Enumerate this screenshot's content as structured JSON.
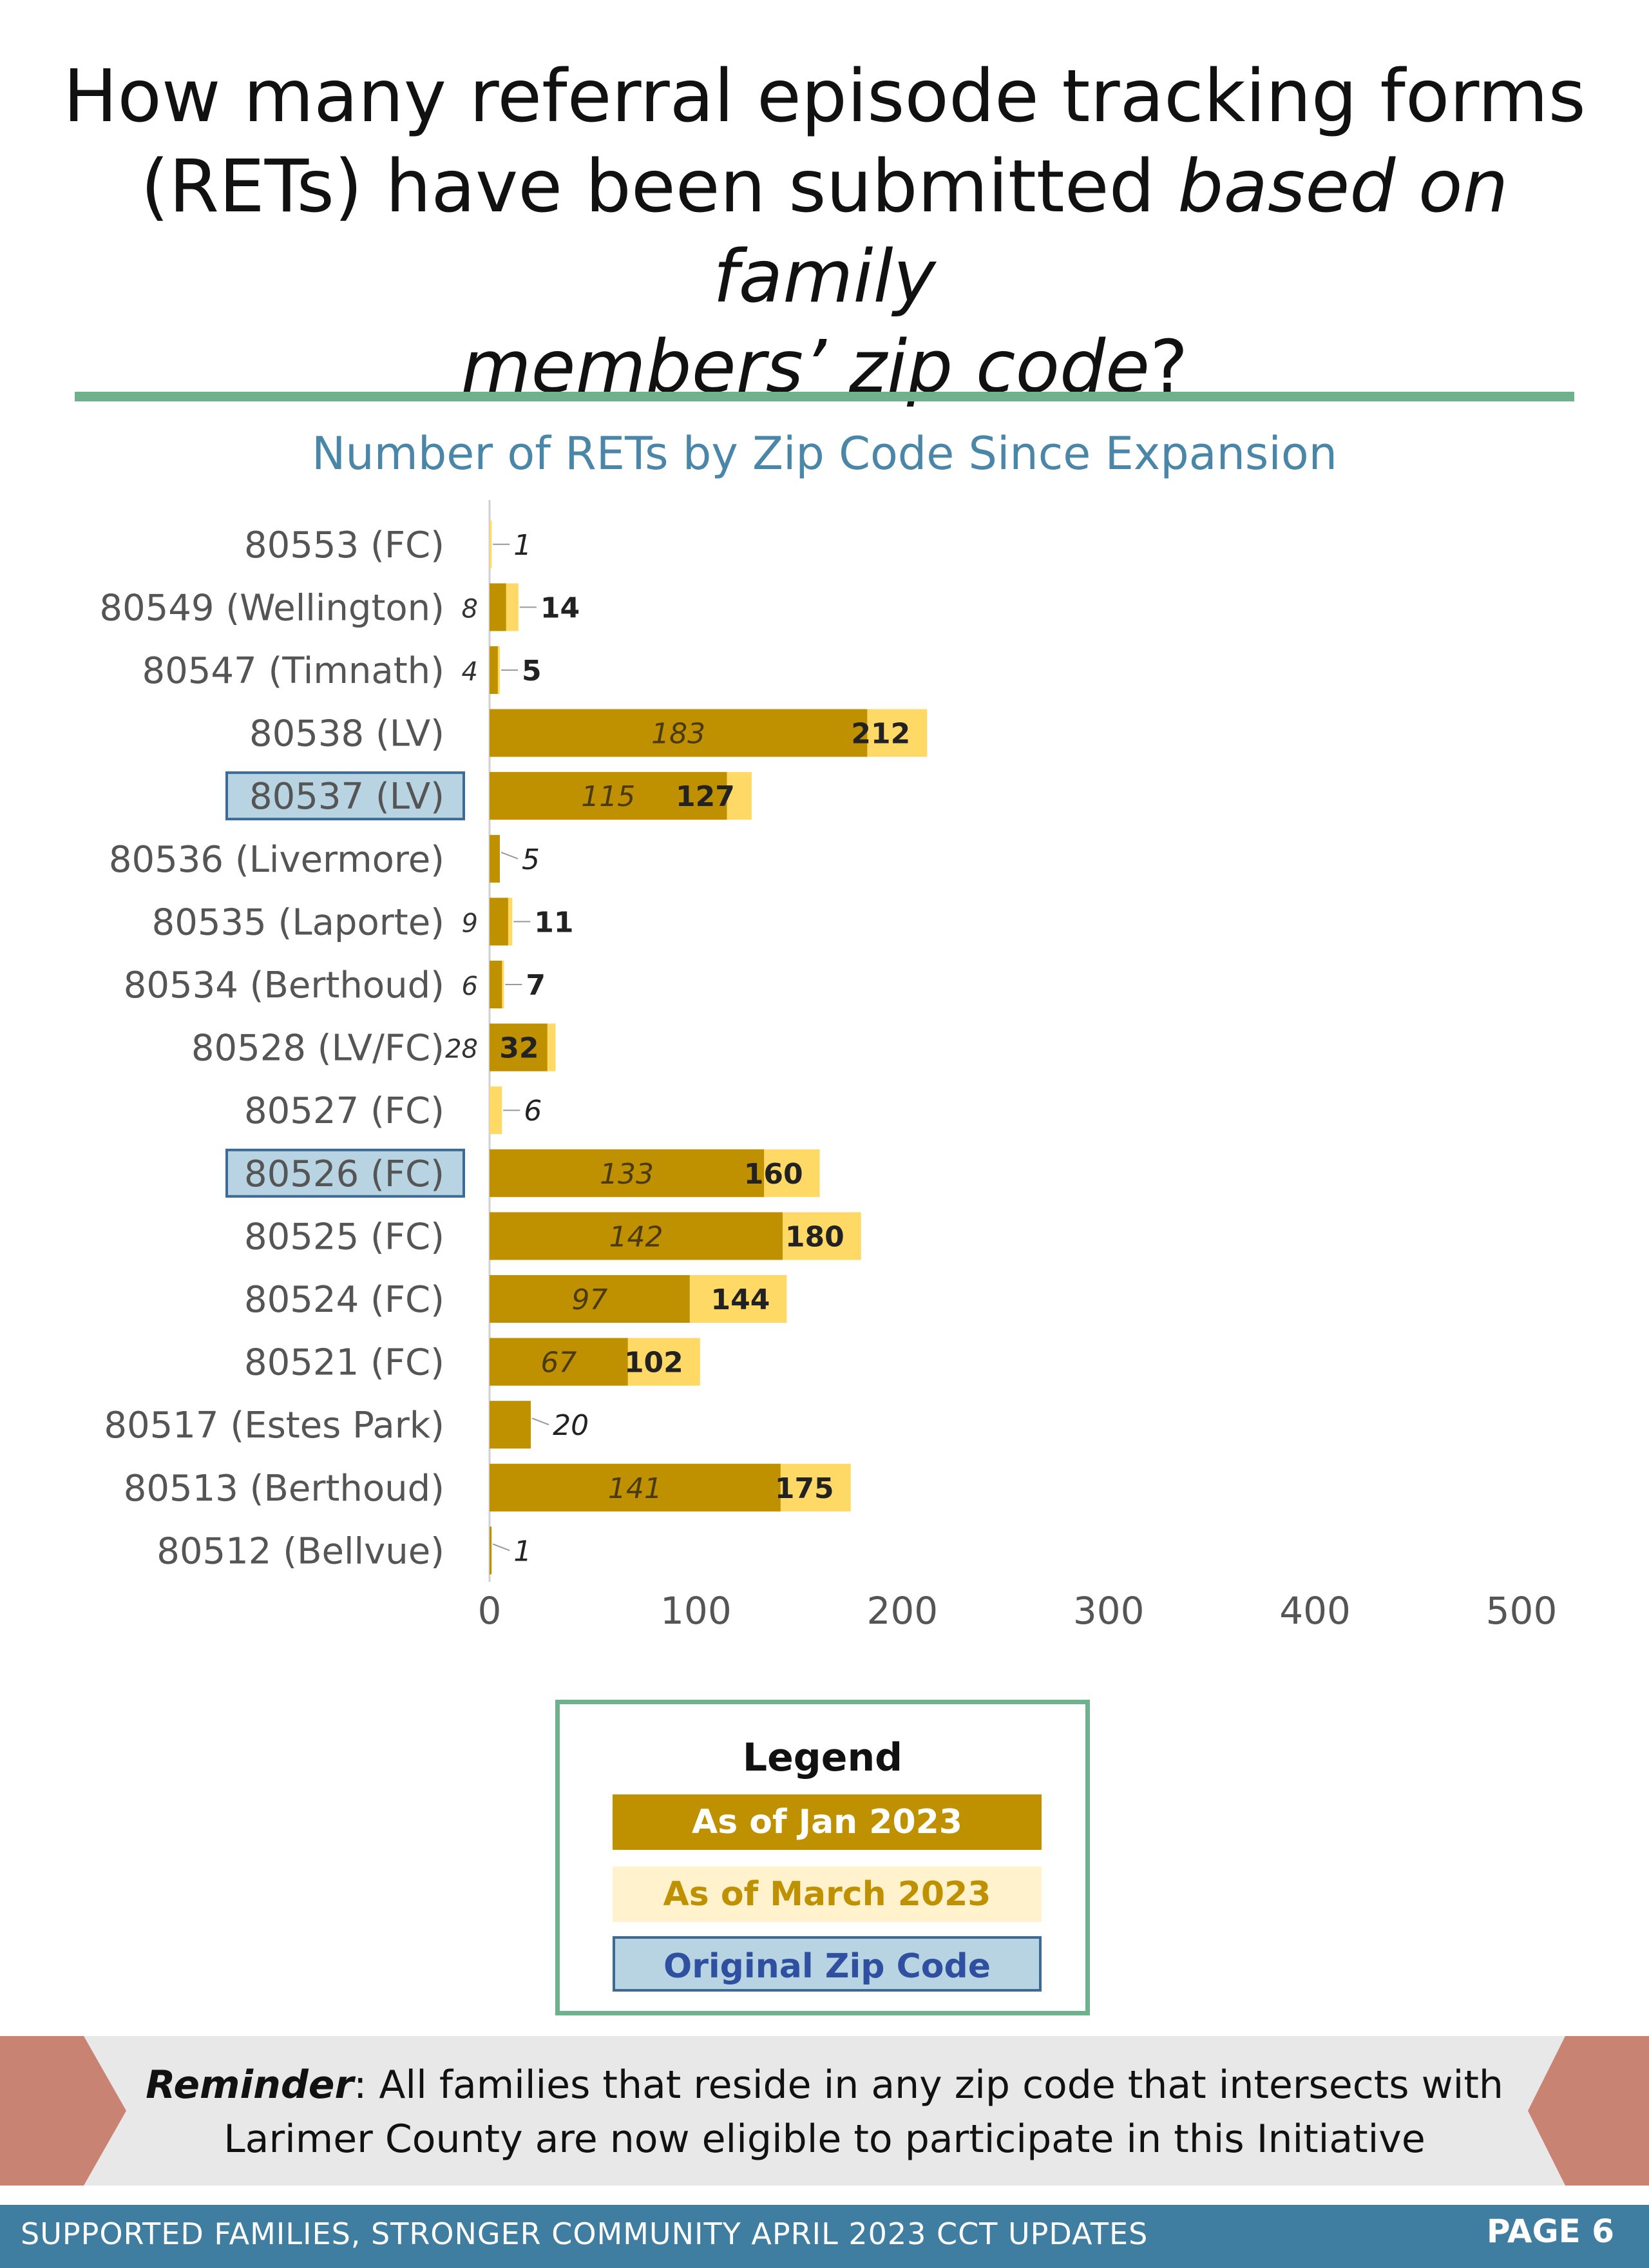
{
  "header": {
    "title_line1": "How many referral episode tracking forms",
    "title_line2a": "(RETs) have been submitted ",
    "title_line2b": "based on family",
    "title_line3a": "members’ zip code",
    "title_line3b": "?"
  },
  "chart_data": {
    "type": "bar",
    "orientation": "horizontal",
    "stacking": "overlaid",
    "title": "Number of RETs by Zip Code Since Expansion",
    "categories": [
      "80553 (FC)",
      "80549 (Wellington)",
      "80547 (Timnath)",
      "80538 (LV)",
      "80537 (LV)",
      "80536 (Livermore)",
      "80535 (Laporte)",
      "80534 (Berthoud)",
      "80528 (LV/FC)",
      "80527 (FC)",
      "80526 (FC)",
      "80525 (FC)",
      "80524 (FC)",
      "80521 (FC)",
      "80517 (Estes Park)",
      "80513 (Berthoud)",
      "80512 (Bellvue)"
    ],
    "series": [
      {
        "name": "As of Jan 2023",
        "color": "#bf9000",
        "values": [
          null,
          8,
          4,
          183,
          115,
          5,
          9,
          6,
          28,
          null,
          133,
          142,
          97,
          67,
          20,
          141,
          1
        ]
      },
      {
        "name": "As of March 2023",
        "color": "#ffd966",
        "values": [
          1,
          14,
          5,
          212,
          127,
          null,
          11,
          7,
          32,
          6,
          160,
          180,
          144,
          102,
          null,
          175,
          null
        ]
      }
    ],
    "highlighted_categories": [
      "80537 (LV)",
      "80526 (FC)"
    ],
    "xlim": [
      0,
      500
    ],
    "xticks": [
      "0",
      "100",
      "200",
      "300",
      "400",
      "500"
    ],
    "legend_placement": "bottom",
    "grid": false
  },
  "legend": {
    "title": "Legend",
    "jan": "As of Jan 2023",
    "march": "As of March 2023",
    "original": "Original Zip Code"
  },
  "banner": {
    "lead": "Reminder",
    "line1": ": All families that reside in any zip code that intersects with",
    "line2": "Larimer County are now eligible to participate in this Initiative"
  },
  "footer": {
    "left": "SUPPORTED FAMILIES, STRONGER COMMUNITY APRIL 2023 CCT UPDATES",
    "right": "PAGE 6"
  }
}
